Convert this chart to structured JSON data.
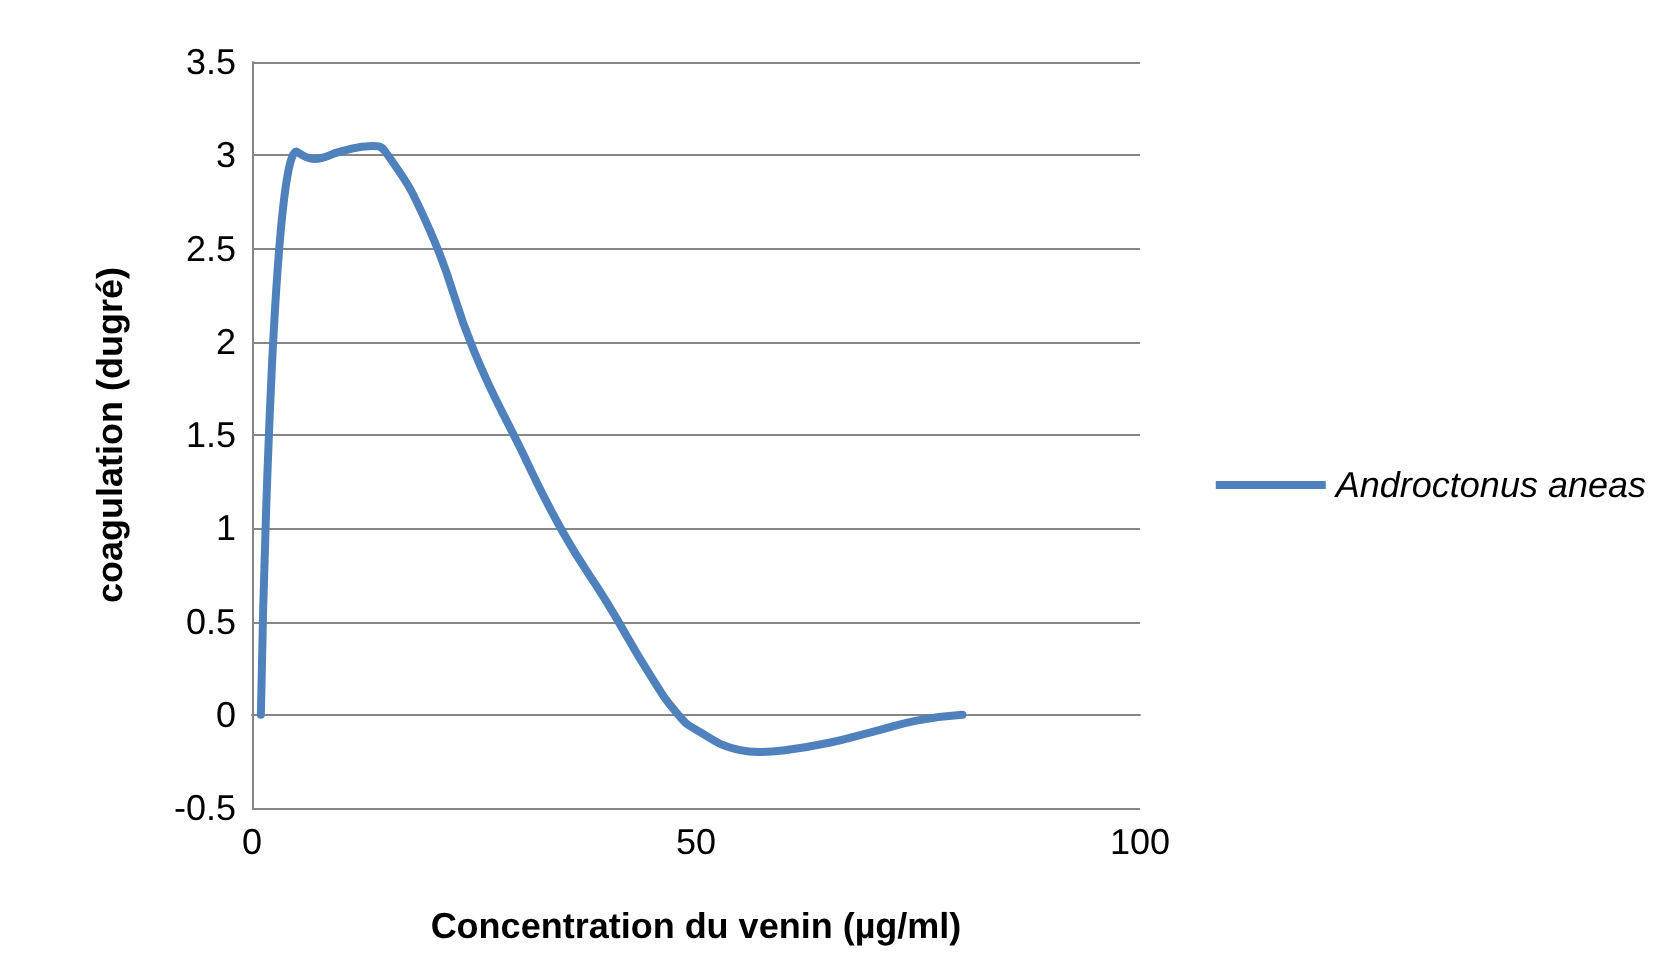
{
  "chart_data": {
    "type": "line",
    "xlabel": "Concentration du venin (µg/ml)",
    "ylabel": "coagulation (dugré)",
    "xlim": [
      0,
      100
    ],
    "xticks": [
      0,
      50,
      100
    ],
    "ylim": [
      -0.5,
      3.5
    ],
    "yticks": [
      -0.5,
      0,
      0.5,
      1,
      1.5,
      2,
      2.5,
      3,
      3.5
    ],
    "grid": "y",
    "legend": "right",
    "marker": "none",
    "line_style": "solid",
    "series": [
      {
        "name": "Androctonus aneas",
        "color": "#4f81bd",
        "x": [
          1,
          5,
          7,
          10,
          13.5,
          15,
          20,
          25,
          30,
          35,
          40,
          45,
          48,
          50,
          55,
          57,
          60,
          65,
          70,
          75,
          80
        ],
        "values": [
          0,
          3.02,
          2.98,
          3.02,
          3.05,
          3.02,
          2.6,
          1.95,
          1.45,
          0.98,
          0.6,
          0.2,
          0,
          -0.08,
          -0.19,
          -0.2,
          -0.19,
          -0.15,
          -0.09,
          -0.03,
          0
        ]
      }
    ]
  }
}
